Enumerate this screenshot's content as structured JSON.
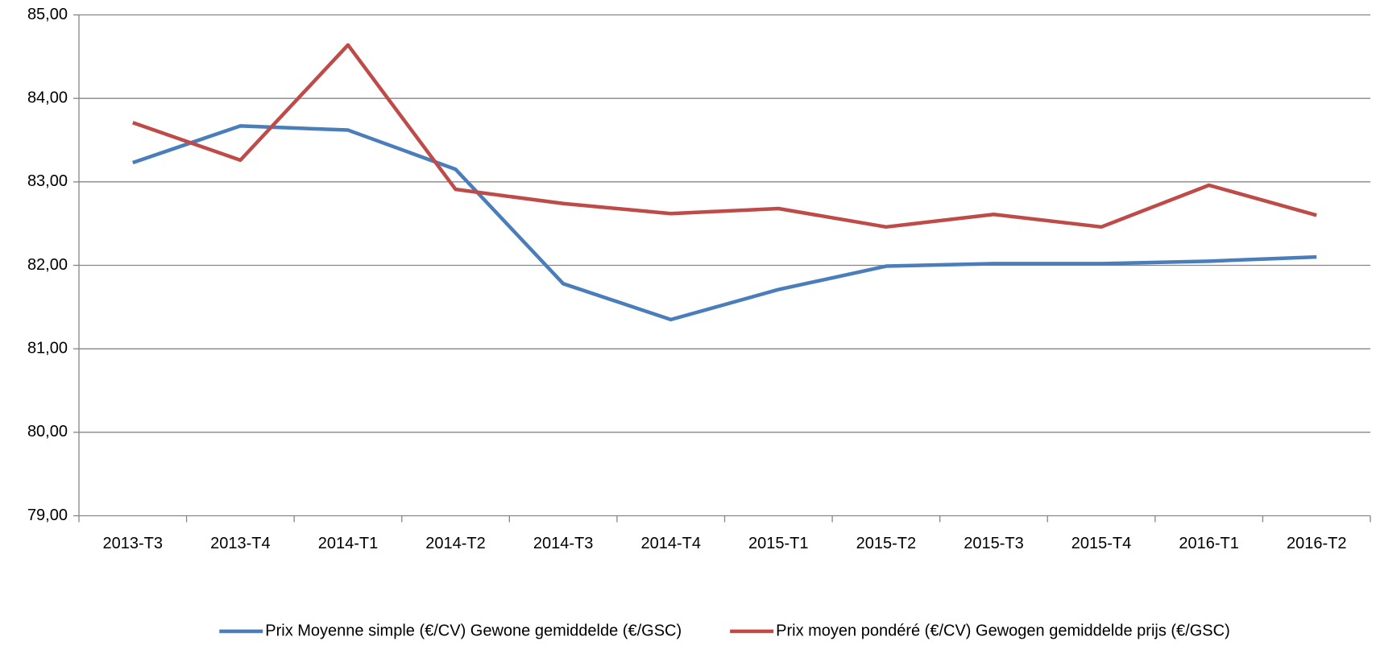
{
  "chart_data": {
    "type": "line",
    "categories": [
      "2013-T3",
      "2013-T4",
      "2014-T1",
      "2014-T2",
      "2014-T3",
      "2014-T4",
      "2015-T1",
      "2015-T2",
      "2015-T3",
      "2015-T4",
      "2016-T1",
      "2016-T2"
    ],
    "series": [
      {
        "name": "Prix Moyenne simple (€/CV) Gewone gemiddelde (€/GSC)",
        "color": "#4a7ebb",
        "values": [
          83.23,
          83.67,
          83.62,
          83.15,
          81.78,
          81.35,
          81.71,
          81.99,
          82.02,
          82.02,
          82.05,
          82.1
        ]
      },
      {
        "name": "Prix moyen pondéré (€/CV) Gewogen gemiddelde prijs (€/GSC)",
        "color": "#be4b48",
        "values": [
          83.71,
          83.26,
          84.64,
          82.91,
          82.74,
          82.62,
          82.68,
          82.46,
          82.61,
          82.46,
          82.96,
          82.6
        ]
      }
    ],
    "ylim": [
      79,
      85
    ],
    "yticks": [
      {
        "value": 79,
        "label": "79,00"
      },
      {
        "value": 80,
        "label": "80,00"
      },
      {
        "value": 81,
        "label": "81,00"
      },
      {
        "value": 82,
        "label": "82,00"
      },
      {
        "value": 83,
        "label": "83,00"
      },
      {
        "value": 84,
        "label": "84,00"
      },
      {
        "value": 85,
        "label": "85,00"
      }
    ],
    "grid": true,
    "legend": "bottom"
  }
}
